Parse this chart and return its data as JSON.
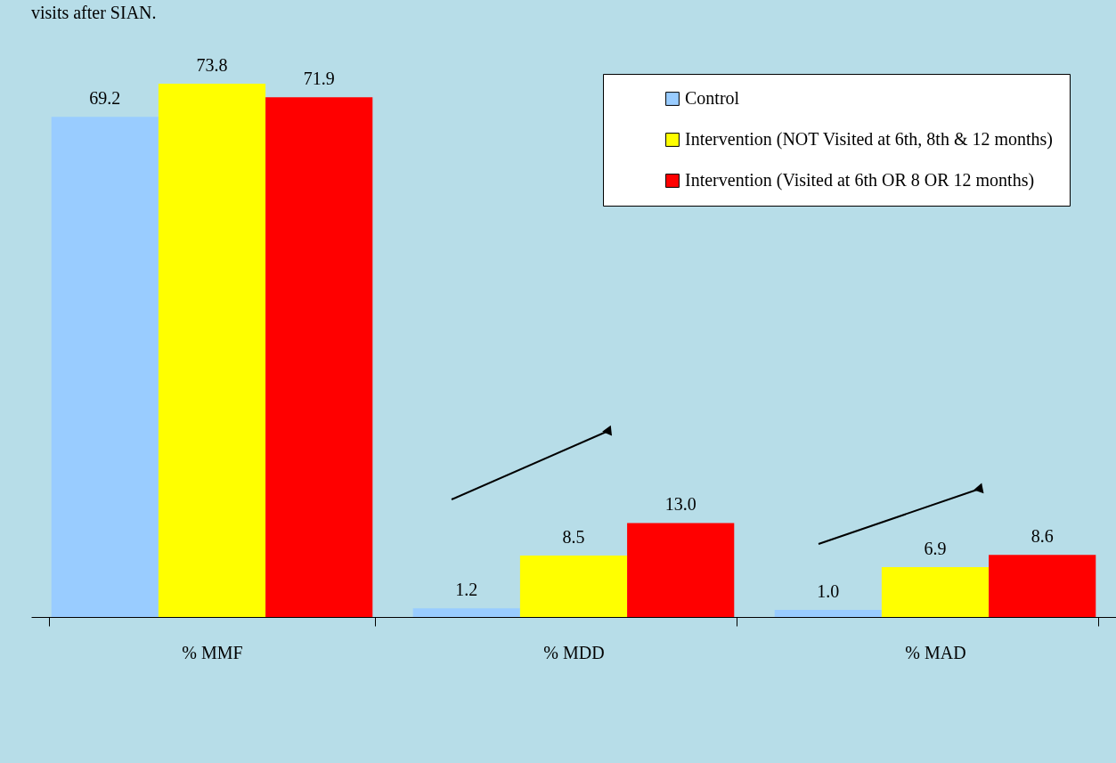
{
  "chart_data": {
    "type": "bar",
    "title": "visits after SIAN.",
    "categories": [
      "% MMF",
      "% MDD",
      "% MAD"
    ],
    "series": [
      {
        "name": "Control",
        "color": "#99ccff",
        "values": [
          69.2,
          1.2,
          1.0
        ],
        "value_labels": [
          "69.2",
          "1.2",
          "1.0"
        ]
      },
      {
        "name": "Intervention (NOT Visited at 6th, 8th & 12 months)",
        "color": "#ffff00",
        "values": [
          73.8,
          8.5,
          6.9
        ],
        "value_labels": [
          "73.8",
          "8.5",
          "6.9"
        ]
      },
      {
        "name": "Intervention (Visited at 6th OR 8 OR 12 months)",
        "color": "#ff0000",
        "values": [
          71.9,
          13.0,
          8.6
        ],
        "value_labels": [
          "71.9",
          "13.0",
          "8.6"
        ]
      }
    ],
    "legend": "top right",
    "grid": false
  }
}
